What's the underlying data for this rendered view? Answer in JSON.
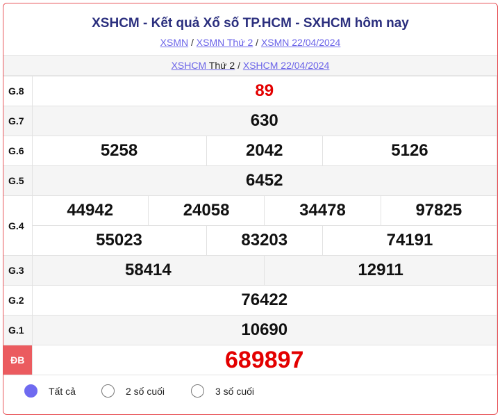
{
  "header": {
    "title": "XSHCM - Kết quả Xổ số TP.HCM - SXHCM hôm nay",
    "breadcrumbs": [
      "XSMN",
      "XSMN Thứ 2",
      "XSMN 22/04/2024"
    ]
  },
  "subnav": {
    "link1_a": "XSHCM",
    "link1_b": "Thứ 2",
    "link2": "XSHCM 22/04/2024"
  },
  "prizes": {
    "g8": {
      "label": "G.8",
      "values": [
        "89"
      ]
    },
    "g7": {
      "label": "G.7",
      "values": [
        "630"
      ]
    },
    "g6": {
      "label": "G.6",
      "values": [
        "5258",
        "2042",
        "5126"
      ]
    },
    "g5": {
      "label": "G.5",
      "values": [
        "6452"
      ]
    },
    "g4": {
      "label": "G.4",
      "values": [
        "44942",
        "24058",
        "34478",
        "97825",
        "55023",
        "83203",
        "74191"
      ]
    },
    "g3": {
      "label": "G.3",
      "values": [
        "58414",
        "12911"
      ]
    },
    "g2": {
      "label": "G.2",
      "values": [
        "76422"
      ]
    },
    "g1": {
      "label": "G.1",
      "values": [
        "10690"
      ]
    },
    "db": {
      "label": "ĐB",
      "values": [
        "689897"
      ]
    }
  },
  "filter": {
    "options": [
      "Tất cả",
      "2 số cuối",
      "3 số cuối"
    ],
    "selected": "Tất cả"
  },
  "colors": {
    "accent": "#6f6af0",
    "special": "#e30000",
    "border": "#e8555a"
  }
}
